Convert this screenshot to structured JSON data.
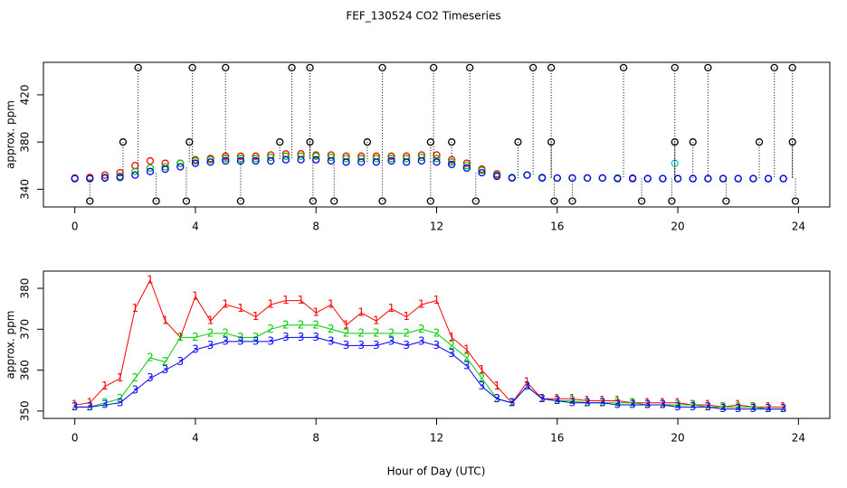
{
  "chart_data": [
    {
      "type": "scatter",
      "title": "FEF_130524  CO2 Timeseries",
      "ylabel": "approx. ppm",
      "xlim": [
        -1.04,
        25.04
      ],
      "xticks": [
        0,
        4,
        8,
        12,
        16,
        20,
        24
      ],
      "ylim": [
        325,
        447.5
      ],
      "yticks": [
        340,
        380,
        420
      ],
      "x": [
        0,
        0.5,
        1,
        1.5,
        2,
        2.5,
        3,
        3.5,
        4,
        4.5,
        5,
        5.5,
        6,
        6.5,
        7,
        7.5,
        8,
        8.5,
        9,
        9.5,
        10,
        10.5,
        11,
        11.5,
        12,
        12.5,
        13,
        13.5,
        14,
        14.5,
        15,
        15.5,
        16,
        16.5,
        17,
        17.5,
        18,
        18.5,
        19,
        19.5,
        20,
        20.5,
        21,
        21.5,
        22,
        22.5,
        23,
        23.5
      ],
      "series": [
        {
          "color": "#ff0000",
          "values": [
            349.5,
            350,
            352,
            354,
            360,
            364,
            362,
            362,
            365,
            366,
            368,
            368,
            368,
            369,
            370,
            370,
            369,
            369,
            368,
            368,
            368,
            368,
            368,
            369,
            369,
            365,
            362,
            357,
            353,
            350,
            352,
            350,
            349.5,
            349.5,
            349.5,
            349.5,
            349.5,
            349.5,
            349,
            349,
            349,
            349,
            349,
            349,
            349,
            349,
            349,
            349
          ]
        },
        {
          "color": "#00cc00",
          "values": [
            349,
            349,
            350,
            351,
            355,
            358,
            359,
            362,
            364,
            365,
            366,
            366,
            366,
            367,
            368,
            368,
            368,
            367,
            366,
            366,
            366,
            366,
            366,
            367,
            366,
            363,
            360,
            356,
            352,
            350,
            352,
            350,
            349.5,
            349.5,
            349.5,
            349.5,
            349.5,
            349,
            349,
            349,
            349,
            349,
            349,
            349,
            349,
            349,
            349,
            349
          ]
        },
        {
          "color": "#0000ff",
          "values": [
            349,
            349,
            349.5,
            350,
            352,
            355,
            357,
            359,
            362,
            363,
            364,
            364,
            364,
            364,
            365,
            365,
            365,
            364,
            363,
            363,
            363,
            364,
            363,
            364,
            363,
            361,
            358,
            354,
            351,
            349.5,
            352,
            349.5,
            349.5,
            349.5,
            349.5,
            349.5,
            349,
            349,
            349,
            349,
            349,
            349,
            349,
            349,
            349,
            349,
            349,
            349
          ]
        },
        {
          "color": "#00cccc",
          "x": [
            19.9
          ],
          "values": [
            362
          ]
        },
        {
          "color": "#000000",
          "x": [
            2.1,
            3.9,
            5.0,
            7.2,
            7.8,
            10.2,
            11.9,
            13.1,
            15.2,
            15.8,
            18.2,
            19.9,
            21.0,
            23.2,
            23.8,
            1.6,
            3.8,
            6.8,
            7.8,
            9.7,
            11.8,
            12.5,
            14.7,
            15.8,
            19.9,
            20.5,
            22.7,
            23.8,
            0.5,
            2.7,
            3.7,
            5.5,
            7.9,
            8.6,
            10.2,
            11.8,
            13.3,
            15.9,
            16.5,
            18.8,
            19.8,
            21.6,
            23.9
          ],
          "values": [
            443,
            443,
            443,
            443,
            443,
            443,
            443,
            443,
            443,
            443,
            443,
            443,
            443,
            443,
            443,
            380,
            380,
            380,
            380,
            380,
            380,
            380,
            380,
            380,
            380,
            380,
            380,
            380,
            330,
            330,
            330,
            330,
            330,
            330,
            330,
            330,
            330,
            330,
            330,
            330,
            330,
            330,
            330
          ]
        }
      ]
    },
    {
      "type": "line",
      "ylabel": "approx. ppm",
      "xlabel": "Hour of Day (UTC)",
      "xlim": [
        -1.04,
        25.04
      ],
      "xticks": [
        0,
        4,
        8,
        12,
        16,
        20,
        24
      ],
      "ylim": [
        348.2,
        384.2
      ],
      "yticks": [
        350,
        360,
        370,
        380
      ],
      "x": [
        0,
        0.5,
        1,
        1.5,
        2,
        2.5,
        3,
        3.5,
        4,
        4.5,
        5,
        5.5,
        6,
        6.5,
        7,
        7.5,
        8,
        8.5,
        9,
        9.5,
        10,
        10.5,
        11,
        11.5,
        12,
        12.5,
        13,
        13.5,
        14,
        14.5,
        15,
        15.5,
        16,
        16.5,
        17,
        17.5,
        18,
        18.5,
        19,
        19.5,
        20,
        20.5,
        21,
        21.5,
        22,
        22.5,
        23,
        23.5
      ],
      "series": [
        {
          "pch": "1",
          "color": "#ff0000",
          "values": [
            351.5,
            352,
            356,
            358,
            375,
            382,
            372,
            368,
            378,
            372,
            376,
            375,
            373,
            376,
            377,
            377,
            374,
            376,
            371,
            374,
            372,
            375,
            373,
            376,
            377,
            368,
            365,
            360,
            356,
            352,
            357,
            353,
            353,
            353,
            352.5,
            352.5,
            352.5,
            352,
            352,
            352,
            352,
            351.5,
            351.5,
            351,
            351.5,
            351,
            351,
            351
          ]
        },
        {
          "pch": "2",
          "color": "#00cc00",
          "values": [
            351,
            351,
            352,
            353,
            358,
            363,
            362,
            368,
            368,
            369,
            369,
            368,
            368,
            370,
            371,
            371,
            371,
            370,
            369,
            369,
            369,
            369,
            369,
            370,
            369,
            366,
            363,
            358,
            353,
            352,
            356,
            353,
            352.5,
            352.5,
            352,
            352,
            352,
            352,
            351.5,
            351.5,
            351.5,
            351.5,
            351,
            351,
            351,
            351,
            350.5,
            350.5
          ]
        },
        {
          "pch": "3",
          "color": "#0000ff",
          "values": [
            351,
            351,
            351.5,
            352,
            355,
            358,
            360,
            362,
            365,
            366,
            367,
            367,
            367,
            367,
            368,
            368,
            368,
            367,
            366,
            366,
            366,
            367,
            366,
            367,
            366,
            364,
            361,
            356,
            353,
            352,
            356,
            353,
            352.5,
            352,
            352,
            352,
            351.5,
            351.5,
            351.5,
            351.5,
            351,
            351,
            351,
            350.5,
            350.5,
            350.5,
            350.5,
            350.5
          ]
        }
      ]
    }
  ]
}
